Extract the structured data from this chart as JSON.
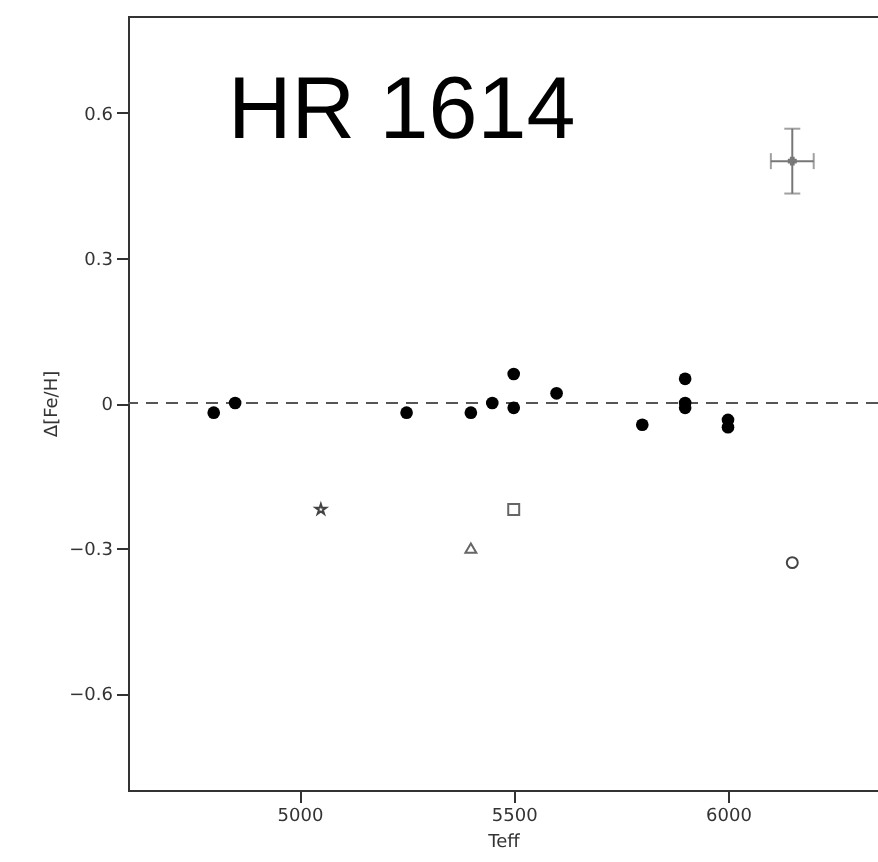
{
  "chart_data": {
    "type": "scatter",
    "xlabel": "Teff",
    "ylabel": "Δ[Fe/H]",
    "annotations": [
      "HR 1614"
    ],
    "xlim": [
      4600,
      6350
    ],
    "xticks": [
      5000,
      5500,
      6000
    ],
    "ylim": [
      -0.8,
      0.8
    ],
    "yticks": [
      {
        "value": -0.6,
        "label": "−0.6"
      },
      {
        "value": -0.3,
        "label": "−0.3"
      },
      0,
      0.3,
      0.6
    ],
    "ref_lines": [
      {
        "axis": "y",
        "value": 0,
        "line_style": "dashed",
        "color": "#555555"
      }
    ],
    "series": [
      {
        "color": "#000000",
        "marker": "circle",
        "x": [
          4800,
          4850,
          5250,
          5400,
          5450,
          5500,
          5500,
          5600,
          5800,
          5900,
          5900,
          5900,
          6000,
          6000
        ],
        "values": [
          -0.02,
          0.0,
          -0.02,
          -0.02,
          0.0,
          0.06,
          -0.01,
          0.02,
          -0.045,
          0.05,
          0.0,
          -0.01,
          -0.035,
          -0.05
        ]
      },
      {
        "color": "#444444",
        "marker": "star",
        "x": [
          5050
        ],
        "values": [
          -0.22
        ]
      },
      {
        "color": "#666666",
        "marker": "triangle",
        "x": [
          5400
        ],
        "values": [
          -0.3
        ]
      },
      {
        "color": "#666666",
        "marker": "square",
        "x": [
          5500
        ],
        "values": [
          -0.22
        ]
      },
      {
        "color": "#444444",
        "marker": "circle",
        "x": [
          6150
        ],
        "values": [
          -0.33
        ]
      },
      {
        "color": "#777777",
        "marker": "cross",
        "x": [
          6150
        ],
        "values": [
          0.5
        ],
        "errors": [
          0.067
        ],
        "xerrors": [
          50
        ]
      }
    ]
  }
}
